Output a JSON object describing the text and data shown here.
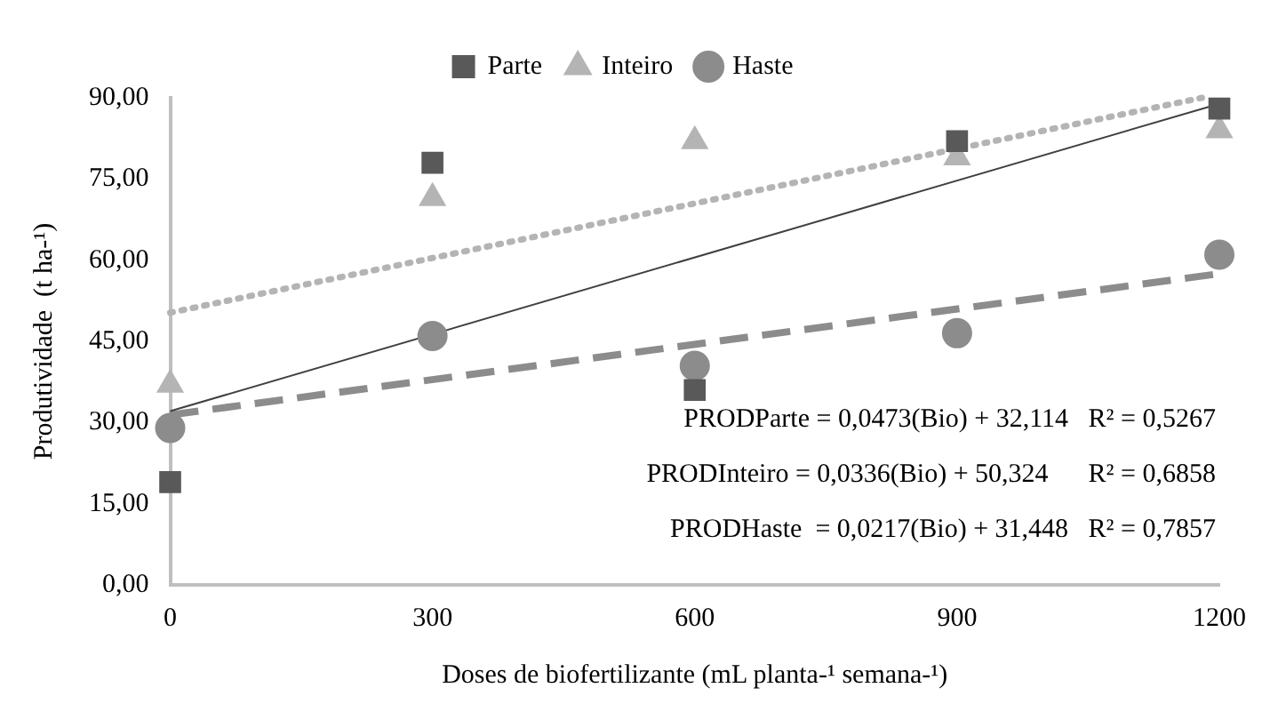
{
  "chart_data": {
    "type": "scatter",
    "xlabel": "Doses de biofertilizante (mL planta-¹ semana-¹)",
    "ylabel": "Produtividade  (t ha-¹)",
    "x": [
      0,
      300,
      600,
      900,
      1200
    ],
    "series": [
      {
        "name": "Parte",
        "color": "#595959",
        "marker": "square",
        "values": [
          19,
          78,
          36,
          82,
          88
        ]
      },
      {
        "name": "Inteiro",
        "color": "#b4b4b4",
        "marker": "triangle",
        "values": [
          37,
          71.5,
          82,
          79,
          84
        ]
      },
      {
        "name": "Haste",
        "color": "#8c8c8c",
        "marker": "circle",
        "values": [
          29,
          46,
          40.5,
          46.5,
          61
        ]
      },
      {
        "type": "line",
        "color": "#404040",
        "line_style": "solid",
        "x": [
          0,
          1200
        ],
        "values": [
          32.1,
          88.9
        ]
      },
      {
        "type": "line",
        "color": "#b4b4b4",
        "line_style": "dotted",
        "x": [
          0,
          1180
        ],
        "values": [
          50.3,
          90
        ]
      },
      {
        "type": "line",
        "color": "#8c8c8c",
        "line_style": "dashed",
        "x": [
          0,
          1200
        ],
        "values": [
          31.4,
          57.5
        ]
      }
    ],
    "xlim": [
      0,
      1200
    ],
    "xticks": [
      0,
      300,
      600,
      900,
      1200
    ],
    "ylim": [
      0,
      90
    ],
    "yticks": [
      {
        "value": 0,
        "label": "0,00"
      },
      {
        "value": 15,
        "label": "15,00"
      },
      {
        "value": 30,
        "label": "30,00"
      },
      {
        "value": 45,
        "label": "45,00"
      },
      {
        "value": 60,
        "label": "60,00"
      },
      {
        "value": 75,
        "label": "75,00"
      },
      {
        "value": 90,
        "label": "90,00"
      }
    ],
    "legend": "top",
    "annotations": [
      "PRODParte = 0,0473(Bio) + 32,114   R² = 0,5267",
      "PRODInteiro = 0,0336(Bio) + 50,324      R² = 0,6858",
      "PRODHaste  = 0,0217(Bio) + 31,448   R² = 0,7857"
    ]
  }
}
